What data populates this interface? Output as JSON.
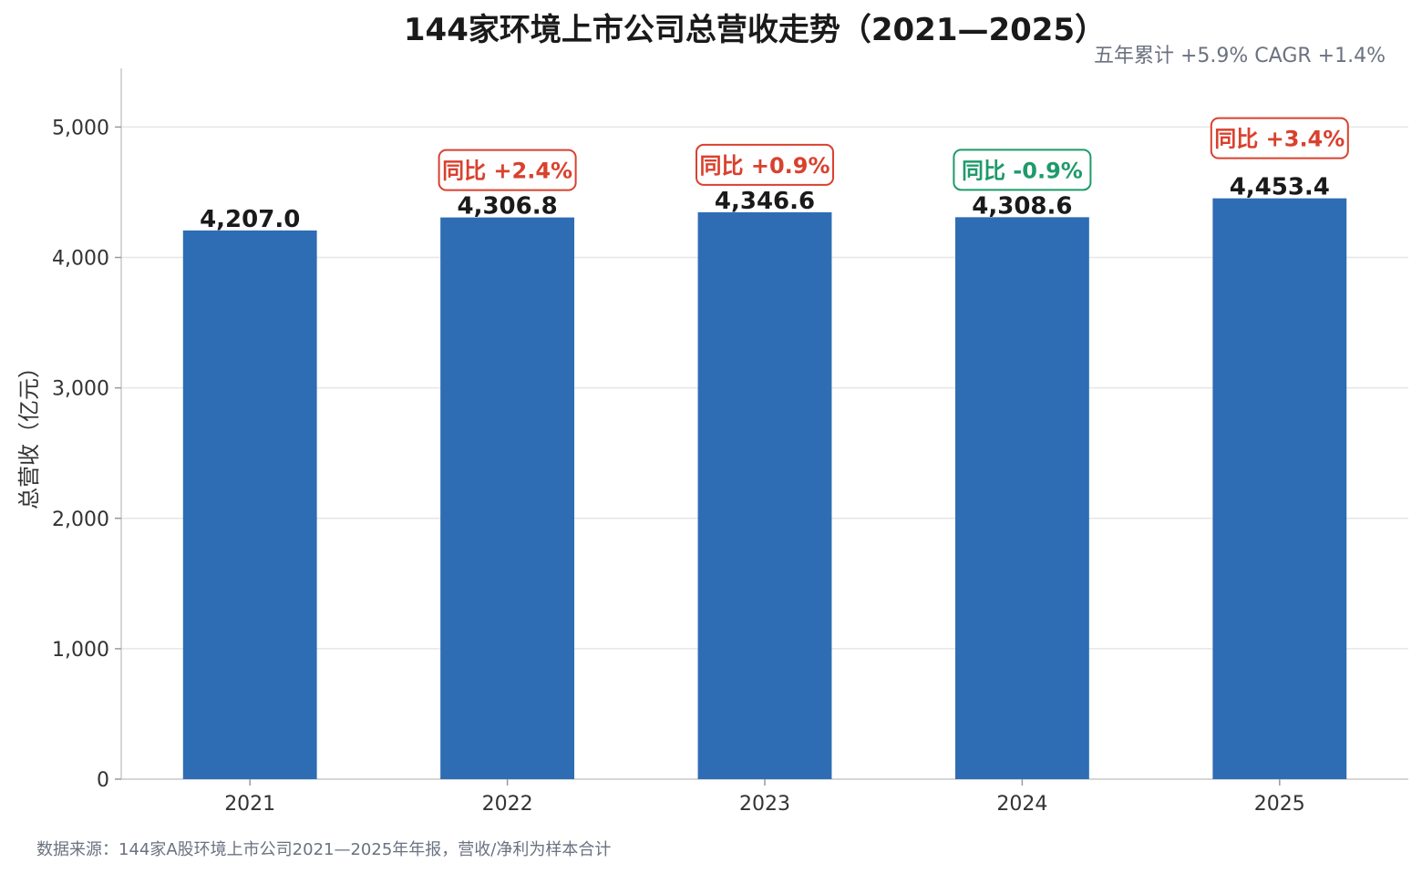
{
  "chart_data": {
    "type": "bar",
    "title": "144家环境上市公司总营收走势（2021—2025）",
    "summary": "五年累计 +5.9%  CAGR +1.4%",
    "ylabel": "总营收（亿元）",
    "xlabel": "",
    "categories": [
      "2021",
      "2022",
      "2023",
      "2024",
      "2025"
    ],
    "values": [
      4207.0,
      4306.8,
      4346.6,
      4308.6,
      4453.4
    ],
    "value_labels": [
      "4,207.0",
      "4,306.8",
      "4,346.6",
      "4,308.6",
      "4,453.4"
    ],
    "yoy": [
      {
        "text": "",
        "direction": ""
      },
      {
        "text": "同比 +2.4%",
        "direction": "up"
      },
      {
        "text": "同比 +0.9%",
        "direction": "up"
      },
      {
        "text": "同比 -0.9%",
        "direction": "down"
      },
      {
        "text": "同比 +3.4%",
        "direction": "up"
      }
    ],
    "ylim": [
      0,
      5450
    ],
    "yticks": [
      0,
      1000,
      2000,
      3000,
      4000,
      5000
    ],
    "ytick_labels": [
      "0",
      "1,000",
      "2,000",
      "3,000",
      "4,000",
      "5,000"
    ],
    "grid": true,
    "legend": "none"
  },
  "footer": {
    "source": "数据来源：144家A股环境上市公司2021—2025年年报，营收/净利为样本合计"
  },
  "colors": {
    "bar": "#2e6db4",
    "up": "#d9412e",
    "down": "#1f9a6a",
    "grid": "#e6e6e6",
    "axis": "#c8c8c8"
  }
}
